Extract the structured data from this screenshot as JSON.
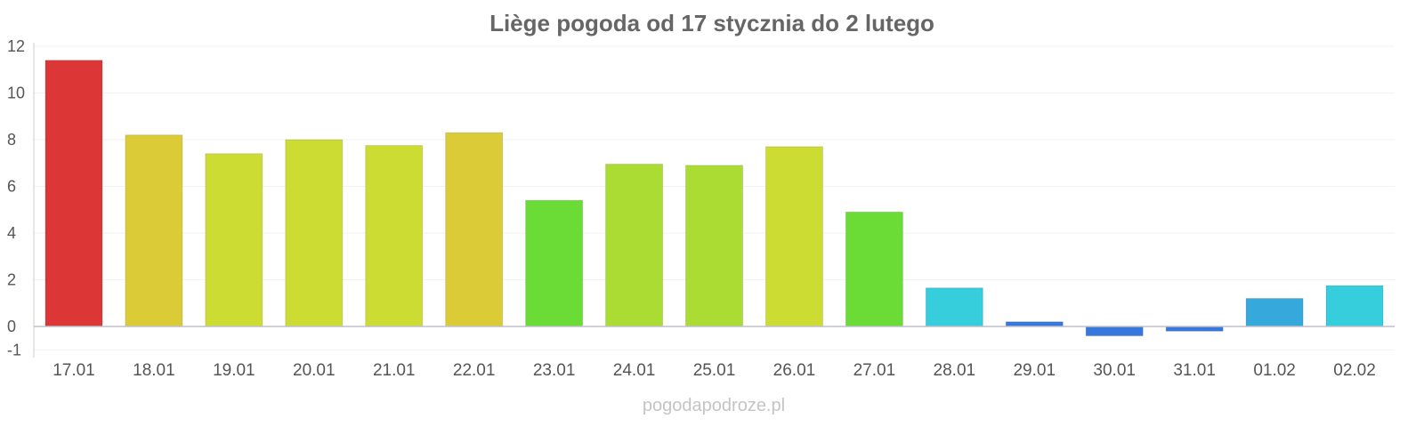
{
  "chart_data": {
    "type": "bar",
    "title": "Liège pogoda od 17 stycznia do 2 lutego",
    "categories": [
      "17.01",
      "18.01",
      "19.01",
      "20.01",
      "21.01",
      "22.01",
      "23.01",
      "24.01",
      "25.01",
      "26.01",
      "27.01",
      "28.01",
      "29.01",
      "30.01",
      "31.01",
      "01.02",
      "02.02"
    ],
    "values": [
      11.4,
      8.2,
      7.4,
      8.0,
      7.75,
      8.3,
      5.4,
      6.95,
      6.9,
      7.7,
      4.9,
      1.65,
      0.2,
      -0.4,
      -0.2,
      1.2,
      1.75
    ],
    "colors": [
      "#dd3636",
      "#dbcb36",
      "#cddc32",
      "#cddc32",
      "#cddc32",
      "#dbcb36",
      "#6bdc36",
      "#abdc34",
      "#abdc34",
      "#cddc32",
      "#6bdc36",
      "#36cddc",
      "#3678dc",
      "#3678dc",
      "#3678dc",
      "#36a8dc",
      "#36cddc"
    ],
    "yticks": [
      12,
      10,
      8,
      6,
      4,
      2,
      0,
      -1
    ],
    "ylim": [
      -1,
      12
    ],
    "grid": true,
    "legend": "none"
  },
  "watermark": "pogodapodroze.pl"
}
